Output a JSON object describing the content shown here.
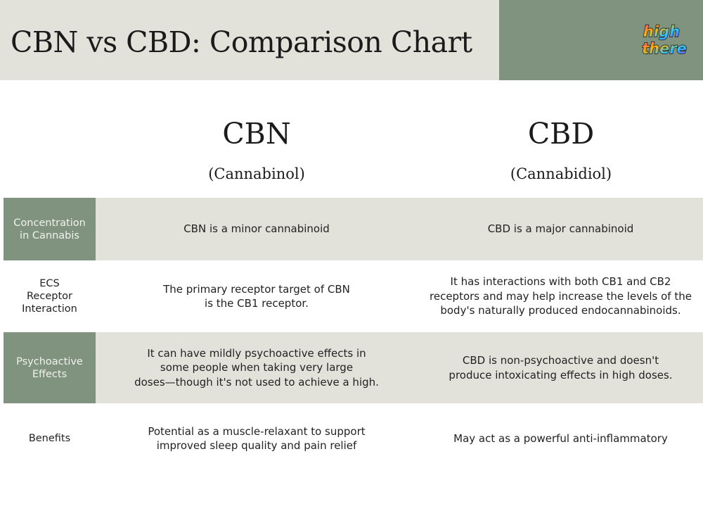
{
  "header": {
    "title": "CBN vs CBD: Comparison Chart",
    "logo_text_top": "high",
    "logo_text_bottom": "there",
    "accent_color": "#7f937e",
    "band_color": "#e3e2da"
  },
  "columns": {
    "cbn": {
      "name": "CBN",
      "full_name": "(Cannabinol)"
    },
    "cbd": {
      "name": "CBD",
      "full_name": "(Cannabidiol)"
    }
  },
  "rows": [
    {
      "label": "Concentration\nin Cannabis",
      "cbn": "CBN is a minor cannabinoid",
      "cbd": "CBD is a major cannabinoid"
    },
    {
      "label": "ECS\nReceptor\nInteraction",
      "cbn": "The primary receptor target of CBN\nis the CB1 receptor.",
      "cbd": "It has interactions with both CB1 and CB2\nreceptors and may help increase the levels of the\nbody's naturally produced endocannabinoids."
    },
    {
      "label": "Psychoactive\nEffects",
      "cbn": "It can have mildly psychoactive effects in\nsome people when taking very large\ndoses—though it's not used to achieve a high.",
      "cbd": "CBD is non-psychoactive and doesn't\nproduce intoxicating effects in high doses."
    },
    {
      "label": "Benefits",
      "cbn": "Potential as a muscle-relaxant to support\nimproved sleep quality and pain relief",
      "cbd": "May act as a powerful anti-inflammatory"
    }
  ]
}
